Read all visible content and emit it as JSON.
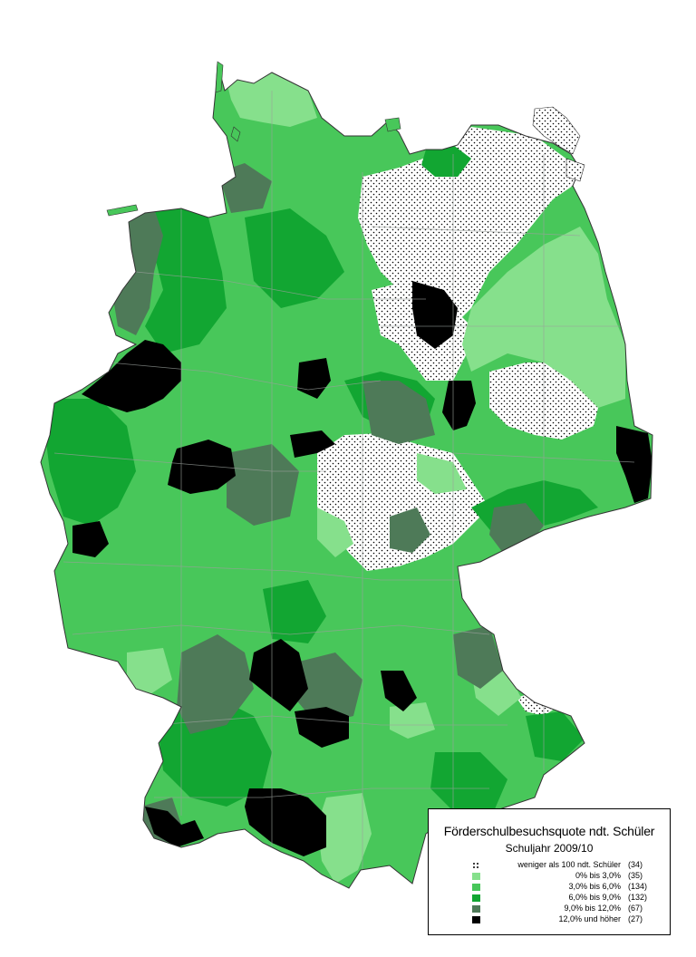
{
  "legend": {
    "title": "Förderschulbesuchsquote ndt. Schüler",
    "subtitle": "Schuljahr 2009/10",
    "classes": [
      {
        "label": "weniger als 100 ndt. Schüler",
        "count": "(34)",
        "color": "#ffffff",
        "pattern": "dots"
      },
      {
        "label": "0% bis 3,0%",
        "count": "(35)",
        "color": "#86e08c",
        "pattern": "solid"
      },
      {
        "label": "3,0% bis 6,0%",
        "count": "(134)",
        "color": "#48c75a",
        "pattern": "solid"
      },
      {
        "label": "6,0% bis 9,0%",
        "count": "(132)",
        "color": "#12a632",
        "pattern": "solid"
      },
      {
        "label": "9,0% bis 12,0%",
        "count": "(67)",
        "color": "#4e7a58",
        "pattern": "solid"
      },
      {
        "label": "12,0% und höher",
        "count": "(27)",
        "color": "#000000",
        "pattern": "solid"
      }
    ]
  }
}
